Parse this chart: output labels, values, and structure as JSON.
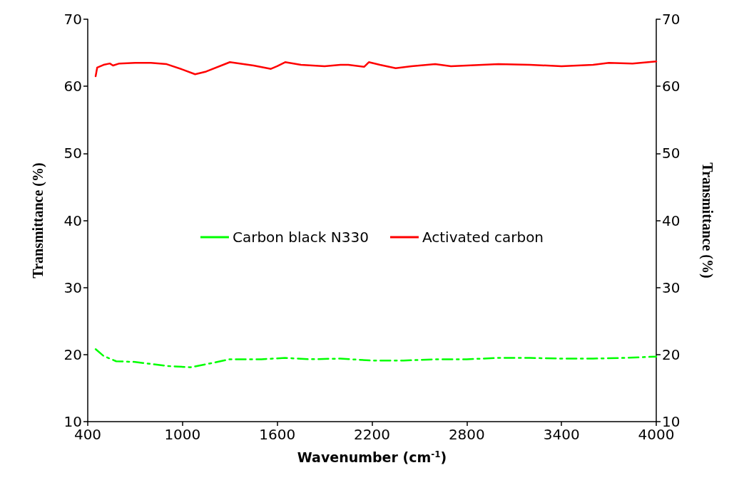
{
  "chart_data": {
    "type": "line",
    "xlabel": "Wavenumber (cm$^{-1}$)",
    "ylabel": "Transmittance (%)",
    "y2label": "Transmittance (%)",
    "xlim": [
      400,
      4000
    ],
    "xticks": [
      400,
      1000,
      1600,
      2200,
      2800,
      3400,
      4000
    ],
    "ylim": [
      10,
      70
    ],
    "yticks": [
      10,
      20,
      30,
      40,
      50,
      60,
      70
    ],
    "y2lim": [
      10,
      70
    ],
    "y2ticks": [
      10,
      20,
      30,
      40,
      50,
      60,
      70
    ],
    "grid": false,
    "legend": "center",
    "marker": "none",
    "series": [
      {
        "name": "Carbon black N330",
        "color": "#00ff00",
        "line_style": "dashed",
        "x": [
          450,
          500,
          580,
          700,
          900,
          1050,
          1200,
          1300,
          1500,
          1650,
          1800,
          2000,
          2200,
          2400,
          2600,
          2800,
          3000,
          3200,
          3400,
          3600,
          3800,
          4000
        ],
        "values": [
          20.8,
          19.8,
          19.0,
          18.9,
          18.3,
          18.1,
          18.8,
          19.3,
          19.3,
          19.5,
          19.3,
          19.4,
          19.1,
          19.1,
          19.3,
          19.3,
          19.5,
          19.5,
          19.4,
          19.4,
          19.5,
          19.7
        ]
      },
      {
        "name": "Activated carbon",
        "color": "#ff0000",
        "line_style": "solid",
        "x": [
          450,
          460,
          500,
          540,
          560,
          600,
          700,
          800,
          900,
          1000,
          1080,
          1150,
          1300,
          1450,
          1560,
          1600,
          1650,
          1750,
          1900,
          2000,
          2050,
          2150,
          2180,
          2250,
          2350,
          2450,
          2600,
          2700,
          2900,
          3000,
          3200,
          3400,
          3600,
          3700,
          3850,
          4000
        ],
        "values": [
          61.5,
          62.8,
          63.2,
          63.4,
          63.1,
          63.4,
          63.5,
          63.5,
          63.3,
          62.5,
          61.8,
          62.2,
          63.6,
          63.1,
          62.6,
          63.0,
          63.6,
          63.2,
          63.0,
          63.2,
          63.2,
          62.9,
          63.6,
          63.2,
          62.7,
          63.0,
          63.3,
          63.0,
          63.2,
          63.3,
          63.2,
          63.0,
          63.2,
          63.5,
          63.4,
          63.7
        ]
      }
    ]
  }
}
